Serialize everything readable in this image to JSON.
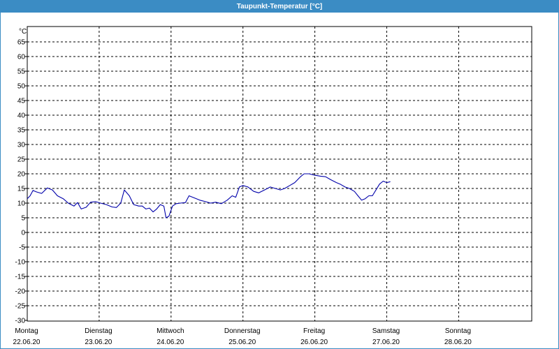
{
  "window": {
    "title": "Taupunkt-Temperatur [°C]"
  },
  "colors": {
    "titlebar": "#3b8cc4",
    "series": "#0000aa",
    "grid": "#000000",
    "axis": "#000000"
  },
  "chart_data": {
    "type": "line",
    "title": "Taupunkt-Temperatur [°C]",
    "ylabel": "°C",
    "xlabel": "",
    "ylim": [
      -30,
      68
    ],
    "yticks": [
      65,
      60,
      55,
      50,
      45,
      40,
      35,
      30,
      25,
      20,
      15,
      10,
      5,
      0,
      -5,
      -10,
      -15,
      -20,
      -25,
      -30
    ],
    "grid": true,
    "x_categories": [
      {
        "day": "Montag",
        "date": "22.06.20"
      },
      {
        "day": "Dienstag",
        "date": "23.06.20"
      },
      {
        "day": "Mittwoch",
        "date": "24.06.20"
      },
      {
        "day": "Donnerstag",
        "date": "25.06.20"
      },
      {
        "day": "Freitag",
        "date": "26.06.20"
      },
      {
        "day": "Samstag",
        "date": "27.06.20"
      },
      {
        "day": "Sonntag",
        "date": "28.06.20"
      }
    ],
    "series": [
      {
        "x_unit": "days since Montag 22.06.20 00:00",
        "points": [
          [
            0.0,
            11.5
          ],
          [
            0.04,
            12.5
          ],
          [
            0.08,
            14.3
          ],
          [
            0.13,
            13.8
          ],
          [
            0.2,
            13.3
          ],
          [
            0.28,
            15.2
          ],
          [
            0.35,
            14.5
          ],
          [
            0.42,
            12.5
          ],
          [
            0.5,
            11.5
          ],
          [
            0.57,
            10.0
          ],
          [
            0.65,
            9.0
          ],
          [
            0.7,
            10.2
          ],
          [
            0.75,
            8.0
          ],
          [
            0.82,
            8.6
          ],
          [
            0.88,
            10.3
          ],
          [
            0.95,
            10.5
          ],
          [
            1.02,
            10.0
          ],
          [
            1.1,
            9.5
          ],
          [
            1.18,
            8.7
          ],
          [
            1.24,
            8.5
          ],
          [
            1.3,
            10.0
          ],
          [
            1.35,
            14.5
          ],
          [
            1.42,
            12.5
          ],
          [
            1.48,
            9.5
          ],
          [
            1.55,
            9.0
          ],
          [
            1.6,
            9.0
          ],
          [
            1.65,
            8.0
          ],
          [
            1.7,
            8.3
          ],
          [
            1.75,
            7.0
          ],
          [
            1.8,
            8.0
          ],
          [
            1.85,
            9.5
          ],
          [
            1.9,
            9.0
          ],
          [
            1.93,
            5.0
          ],
          [
            1.97,
            5.5
          ],
          [
            2.02,
            9.0
          ],
          [
            2.07,
            9.8
          ],
          [
            2.13,
            10.0
          ],
          [
            2.2,
            10.2
          ],
          [
            2.25,
            12.5
          ],
          [
            2.32,
            11.8
          ],
          [
            2.4,
            11.0
          ],
          [
            2.48,
            10.5
          ],
          [
            2.55,
            10.0
          ],
          [
            2.62,
            10.3
          ],
          [
            2.7,
            9.8
          ],
          [
            2.78,
            11.0
          ],
          [
            2.85,
            12.5
          ],
          [
            2.9,
            12.0
          ],
          [
            2.95,
            15.5
          ],
          [
            3.0,
            16.0
          ],
          [
            3.07,
            15.5
          ],
          [
            3.15,
            14.0
          ],
          [
            3.22,
            13.5
          ],
          [
            3.3,
            14.5
          ],
          [
            3.38,
            15.5
          ],
          [
            3.45,
            15.0
          ],
          [
            3.52,
            14.5
          ],
          [
            3.58,
            15.0
          ],
          [
            3.65,
            16.0
          ],
          [
            3.72,
            17.0
          ],
          [
            3.8,
            19.0
          ],
          [
            3.85,
            20.0
          ],
          [
            3.92,
            20.0
          ],
          [
            4.0,
            19.5
          ],
          [
            4.08,
            19.2
          ],
          [
            4.15,
            19.0
          ],
          [
            4.22,
            18.0
          ],
          [
            4.3,
            17.0
          ],
          [
            4.35,
            16.5
          ],
          [
            4.42,
            15.5
          ],
          [
            4.48,
            15.0
          ],
          [
            4.55,
            14.0
          ],
          [
            4.6,
            12.5
          ],
          [
            4.65,
            11.0
          ],
          [
            4.7,
            11.5
          ],
          [
            4.75,
            12.5
          ],
          [
            4.8,
            12.5
          ],
          [
            4.85,
            14.5
          ],
          [
            4.9,
            16.5
          ],
          [
            4.95,
            17.5
          ],
          [
            5.0,
            17.0
          ],
          [
            5.05,
            17.3
          ]
        ]
      }
    ]
  }
}
